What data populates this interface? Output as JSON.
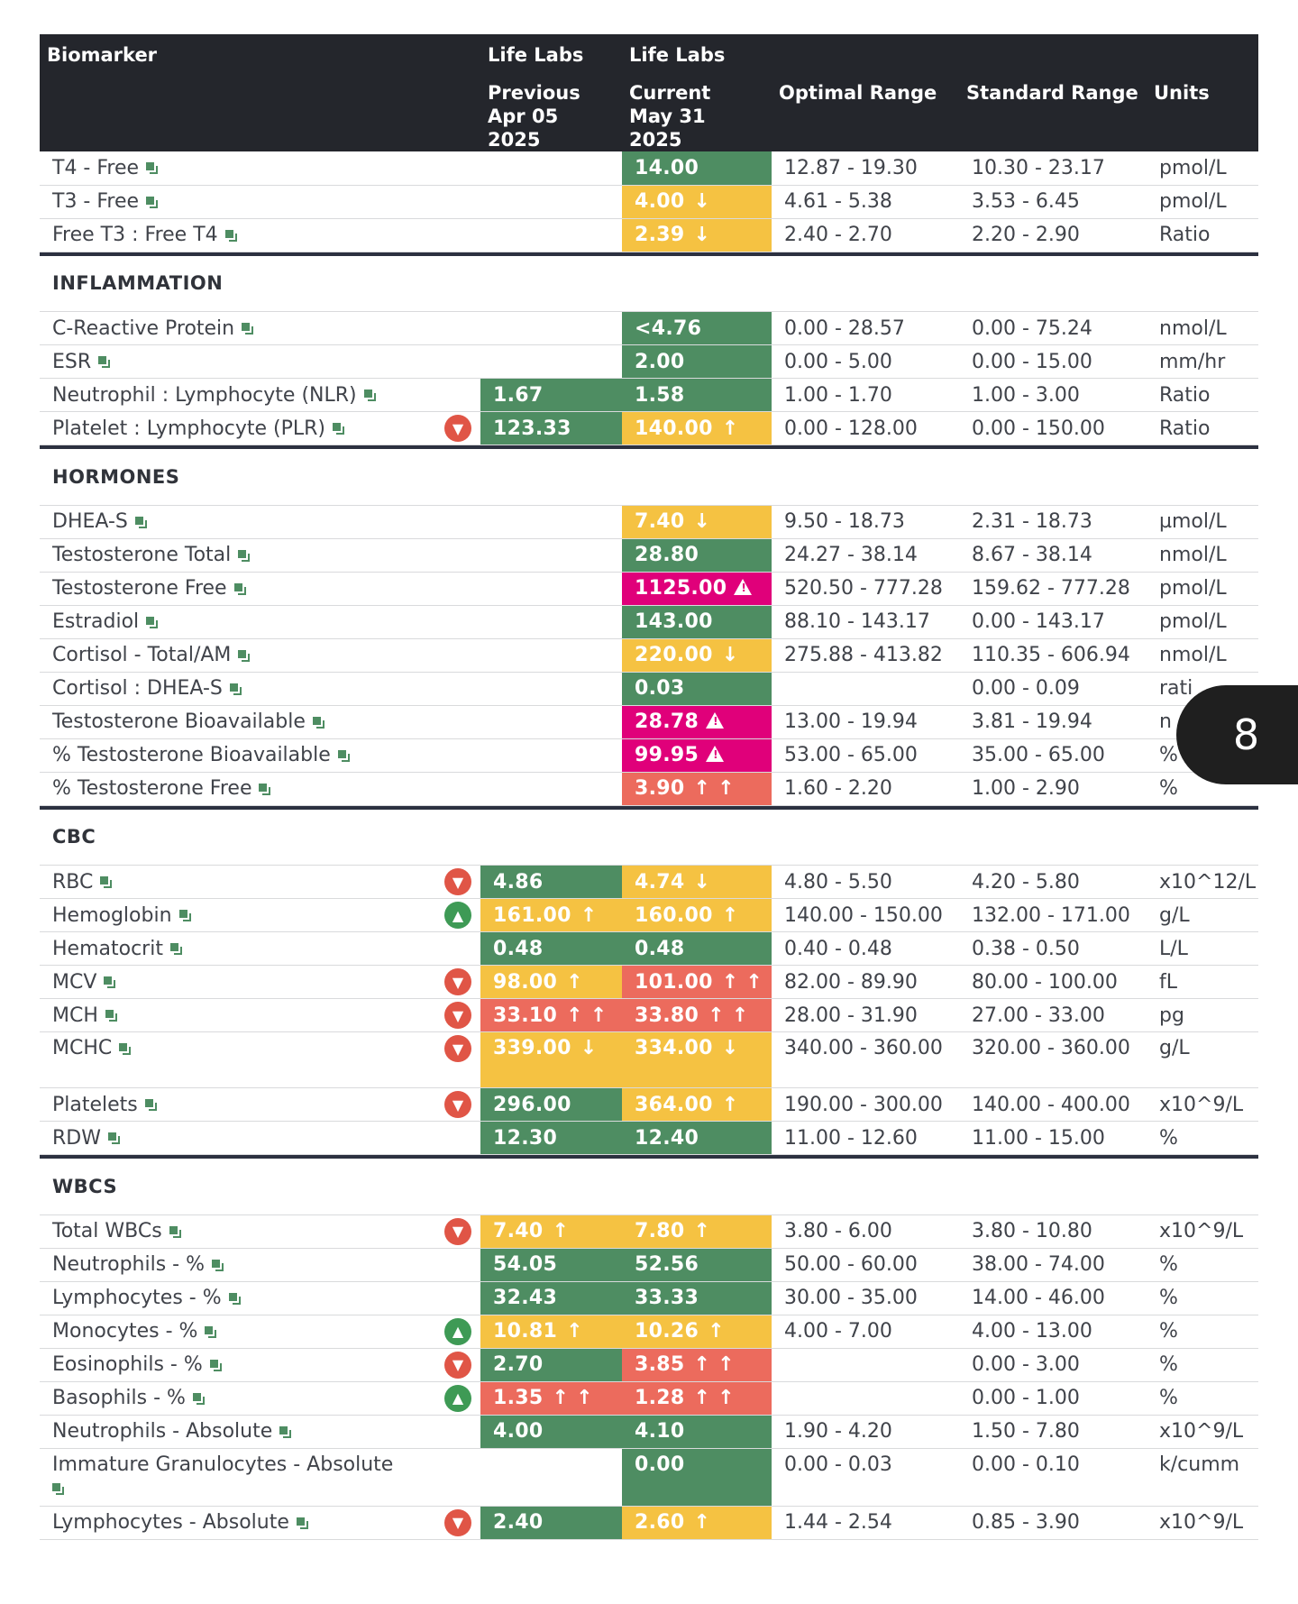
{
  "header": {
    "biomarker": "Biomarker",
    "prev_lab": "Life Labs",
    "prev_label": "Previous",
    "prev_date_1": "Apr 05",
    "prev_date_2": "2025",
    "cur_lab": "Life Labs",
    "cur_label": "Current",
    "cur_date": "May 31 2025",
    "optimal": "Optimal Range",
    "standard": "Standard Range",
    "units": "Units"
  },
  "colors": {
    "green": "#4e8d62",
    "yellow": "#f5c242",
    "red": "#ec6b5d",
    "magenta": "#e0007a",
    "header_bg": "#24262c"
  },
  "page_badge": "8",
  "thyroid": [
    {
      "name": "T4 - Free",
      "cur": "14.00",
      "opt": "12.87 - 19.30",
      "std": "10.30 - 23.17",
      "unit": "pmol/L"
    },
    {
      "name": "T3 - Free",
      "cur": "4.00",
      "cur_flag": "↓",
      "opt": "4.61 - 5.38",
      "std": "3.53 - 6.45",
      "unit": "pmol/L"
    },
    {
      "name": "Free T3 : Free T4",
      "cur": "2.39",
      "cur_flag": "↓",
      "opt": "2.40 - 2.70",
      "std": "2.20 - 2.90",
      "unit": "Ratio"
    }
  ],
  "inflammation": {
    "title": "INFLAMMATION",
    "rows": [
      {
        "name": "C-Reactive Protein",
        "cur": "<4.76",
        "opt": "0.00 - 28.57",
        "std": "0.00 - 75.24",
        "unit": "nmol/L"
      },
      {
        "name": "ESR",
        "cur": "2.00",
        "opt": "0.00 - 5.00",
        "std": "0.00 - 15.00",
        "unit": "mm/hr"
      },
      {
        "name": "Neutrophil : Lymphocyte (NLR)",
        "prev": "1.67",
        "cur": "1.58",
        "opt": "1.00 - 1.70",
        "std": "1.00 - 3.00",
        "unit": "Ratio"
      },
      {
        "name": "Platelet : Lymphocyte (PLR)",
        "prev": "123.33",
        "cur": "140.00",
        "cur_flag": "↑",
        "opt": "0.00 - 128.00",
        "std": "0.00 - 150.00",
        "unit": "Ratio"
      }
    ]
  },
  "hormones": {
    "title": "HORMONES",
    "rows": [
      {
        "name": "DHEA-S",
        "cur": "7.40",
        "cur_flag": "↓",
        "opt": "9.50 - 18.73",
        "std": "2.31 - 18.73",
        "unit": "µmol/L"
      },
      {
        "name": "Testosterone Total",
        "cur": "28.80",
        "opt": "24.27 - 38.14",
        "std": "8.67 - 38.14",
        "unit": "nmol/L"
      },
      {
        "name": "Testosterone Free",
        "cur": "1125.00",
        "opt": "520.50 - 777.28",
        "std": "159.62 - 777.28",
        "unit": "pmol/L"
      },
      {
        "name": "Estradiol",
        "cur": "143.00",
        "opt": "88.10 - 143.17",
        "std": "0.00 - 143.17",
        "unit": "pmol/L"
      },
      {
        "name": "Cortisol - Total/AM",
        "cur": "220.00",
        "cur_flag": "↓",
        "opt": "275.88 - 413.82",
        "std": "110.35 - 606.94",
        "unit": "nmol/L"
      },
      {
        "name": "Cortisol : DHEA-S",
        "cur": "0.03",
        "opt": "",
        "std": "0.00 - 0.09",
        "unit": "rati"
      },
      {
        "name": "Testosterone Bioavailable",
        "cur": "28.78",
        "opt": "13.00 - 19.94",
        "std": "3.81 - 19.94",
        "unit": "n"
      },
      {
        "name": "% Testosterone Bioavailable",
        "cur": "99.95",
        "opt": "53.00 - 65.00",
        "std": "35.00 - 65.00",
        "unit": "%"
      },
      {
        "name": "% Testosterone Free",
        "cur": "3.90",
        "cur_flag": "↑ ↑",
        "opt": "1.60 - 2.20",
        "std": "1.00 - 2.90",
        "unit": "%"
      }
    ]
  },
  "cbc": {
    "title": "CBC",
    "rows": [
      {
        "name": "RBC",
        "prev": "4.86",
        "cur": "4.74",
        "cur_flag": "↓",
        "opt": "4.80 - 5.50",
        "std": "4.20 - 5.80",
        "unit": "x10^12/L"
      },
      {
        "name": "Hemoglobin",
        "prev": "161.00",
        "prev_flag": "↑",
        "cur": "160.00",
        "cur_flag": "↑",
        "opt": "140.00 - 150.00",
        "std": "132.00 - 171.00",
        "unit": "g/L"
      },
      {
        "name": "Hematocrit",
        "prev": "0.48",
        "cur": "0.48",
        "opt": "0.40 - 0.48",
        "std": "0.38 - 0.50",
        "unit": "L/L"
      },
      {
        "name": "MCV",
        "prev": "98.00",
        "prev_flag": "↑",
        "cur": "101.00",
        "cur_flag": "↑ ↑",
        "opt": "82.00 - 89.90",
        "std": "80.00 - 100.00",
        "unit": "fL"
      },
      {
        "name": "MCH",
        "prev": "33.10",
        "prev_flag": "↑ ↑",
        "cur": "33.80",
        "cur_flag": "↑ ↑",
        "opt": "28.00 - 31.90",
        "std": "27.00 - 33.00",
        "unit": "pg"
      },
      {
        "name": "MCHC",
        "prev": "339.00",
        "prev_flag": "↓",
        "cur": "334.00",
        "cur_flag": "↓",
        "opt": "340.00 - 360.00",
        "std": "320.00 - 360.00",
        "unit": "g/L"
      },
      {
        "name": "Platelets",
        "prev": "296.00",
        "cur": "364.00",
        "cur_flag": "↑",
        "opt": "190.00 - 300.00",
        "std": "140.00 - 400.00",
        "unit": "x10^9/L"
      },
      {
        "name": "RDW",
        "prev": "12.30",
        "cur": "12.40",
        "opt": "11.00 - 12.60",
        "std": "11.00 - 15.00",
        "unit": "%"
      }
    ]
  },
  "wbcs": {
    "title": "WBCS",
    "rows": [
      {
        "name": "Total WBCs",
        "prev": "7.40",
        "prev_flag": "↑",
        "cur": "7.80",
        "cur_flag": "↑",
        "opt": "3.80 - 6.00",
        "std": "3.80 - 10.80",
        "unit": "x10^9/L"
      },
      {
        "name": "Neutrophils - %",
        "prev": "54.05",
        "cur": "52.56",
        "opt": "50.00 - 60.00",
        "std": "38.00 - 74.00",
        "unit": "%"
      },
      {
        "name": "Lymphocytes - %",
        "prev": "32.43",
        "cur": "33.33",
        "opt": "30.00 - 35.00",
        "std": "14.00 - 46.00",
        "unit": "%"
      },
      {
        "name": "Monocytes - %",
        "prev": "10.81",
        "prev_flag": "↑",
        "cur": "10.26",
        "cur_flag": "↑",
        "opt": "4.00 - 7.00",
        "std": "4.00 - 13.00",
        "unit": "%"
      },
      {
        "name": "Eosinophils - %",
        "prev": "2.70",
        "cur": "3.85",
        "cur_flag": "↑ ↑",
        "opt": "",
        "std": "0.00 - 3.00",
        "unit": "%"
      },
      {
        "name": "Basophils - %",
        "prev": "1.35",
        "prev_flag": "↑ ↑",
        "cur": "1.28",
        "cur_flag": "↑ ↑",
        "opt": "",
        "std": "0.00 - 1.00",
        "unit": "%"
      },
      {
        "name": "Neutrophils - Absolute",
        "prev": "4.00",
        "cur": "4.10",
        "opt": "1.90 - 4.20",
        "std": "1.50 - 7.80",
        "unit": "x10^9/L"
      },
      {
        "name": "Immature Granulocytes - Absolute",
        "cur": "0.00",
        "opt": "0.00 - 0.03",
        "std": "0.00 - 0.10",
        "unit": "k/cumm"
      },
      {
        "name": "Lymphocytes - Absolute",
        "prev": "2.40",
        "cur": "2.60",
        "cur_flag": "↑",
        "opt": "1.44 - 2.54",
        "std": "0.85 - 3.90",
        "unit": "x10^9/L"
      }
    ]
  }
}
